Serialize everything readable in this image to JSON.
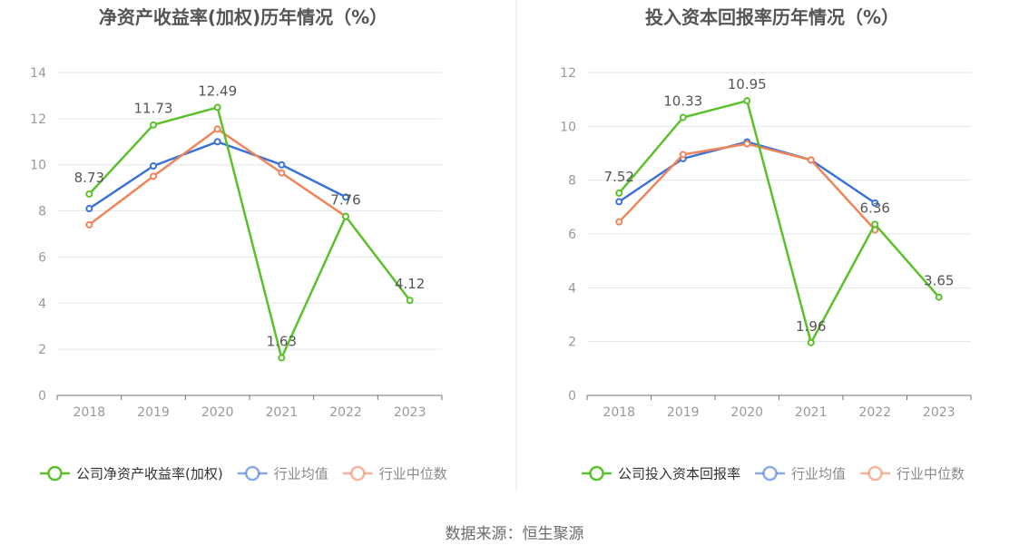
{
  "source_text": "数据来源：恒生聚源",
  "chart_data": [
    {
      "type": "line",
      "title": "净资产收益率(加权)历年情况（%）",
      "xlabel": "",
      "ylabel": "",
      "categories": [
        "2018",
        "2019",
        "2020",
        "2021",
        "2022",
        "2023"
      ],
      "ylim": [
        0,
        14
      ],
      "yticks": [
        0,
        2,
        4,
        6,
        8,
        10,
        12,
        14
      ],
      "grid": true,
      "legend_position": "bottom",
      "series": [
        {
          "name": "公司净资产收益率(加权)",
          "color": "#5bc12b",
          "values": [
            8.73,
            11.73,
            12.49,
            1.63,
            7.76,
            4.12
          ],
          "labels": [
            "8.73",
            "11.73",
            "12.49",
            "1.63",
            "7.76",
            "4.12"
          ]
        },
        {
          "name": "行业均值",
          "color": "#3a72d8",
          "values": [
            8.1,
            9.95,
            11.0,
            10.0,
            8.6,
            null
          ]
        },
        {
          "name": "行业中位数",
          "color": "#f0845a",
          "values": [
            7.4,
            9.5,
            11.55,
            9.65,
            7.76,
            null
          ]
        }
      ]
    },
    {
      "type": "line",
      "title": "投入资本回报率历年情况（%）",
      "xlabel": "",
      "ylabel": "",
      "categories": [
        "2018",
        "2019",
        "2020",
        "2021",
        "2022",
        "2023"
      ],
      "ylim": [
        0,
        12
      ],
      "yticks": [
        0,
        2,
        4,
        6,
        8,
        10,
        12
      ],
      "grid": true,
      "legend_position": "bottom",
      "series": [
        {
          "name": "公司投入资本回报率",
          "color": "#5bc12b",
          "values": [
            7.52,
            10.33,
            10.95,
            1.96,
            6.36,
            3.65
          ],
          "labels": [
            "7.52",
            "10.33",
            "10.95",
            "1.96",
            "6.36",
            "3.65"
          ]
        },
        {
          "name": "行业均值",
          "color": "#3a72d8",
          "values": [
            7.2,
            8.8,
            9.42,
            8.75,
            7.15,
            null
          ]
        },
        {
          "name": "行业中位数",
          "color": "#f0845a",
          "values": [
            6.45,
            8.95,
            9.35,
            8.75,
            6.15,
            null
          ]
        }
      ]
    }
  ]
}
